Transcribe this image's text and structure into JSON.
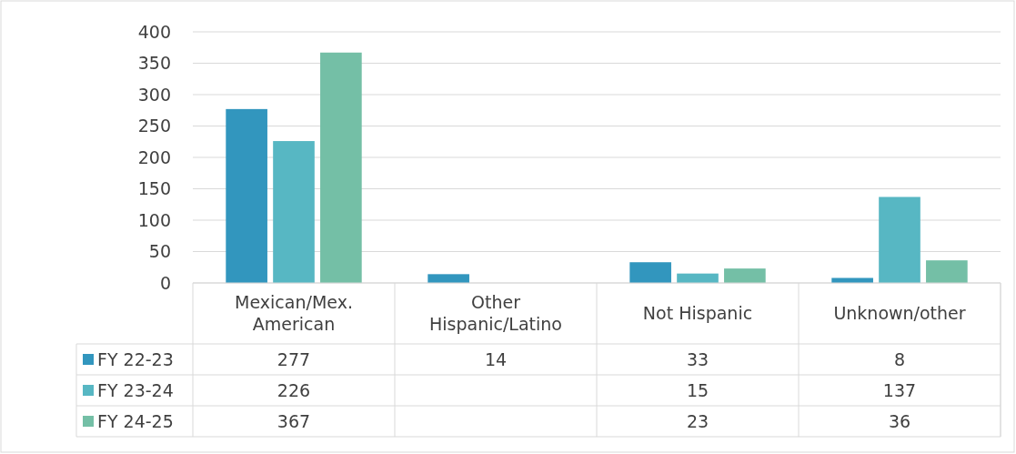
{
  "chart_data": {
    "type": "bar",
    "categories": [
      "Mexican/Mex. American",
      "Other Hispanic/Latino",
      "Not Hispanic",
      "Unknown/other"
    ],
    "series": [
      {
        "name": "FY 22-23",
        "color": "#3296be",
        "values": [
          277,
          14,
          33,
          8
        ]
      },
      {
        "name": "FY 23-24",
        "color": "#57b7c3",
        "values": [
          226,
          null,
          15,
          137
        ]
      },
      {
        "name": "FY 24-25",
        "color": "#74bfa6",
        "values": [
          367,
          null,
          23,
          36
        ]
      }
    ],
    "ylim": [
      0,
      400
    ],
    "yticks": [
      0,
      50,
      100,
      150,
      200,
      250,
      300,
      350,
      400
    ],
    "grid": "y",
    "data_labels": true,
    "legend": "bottom left"
  }
}
